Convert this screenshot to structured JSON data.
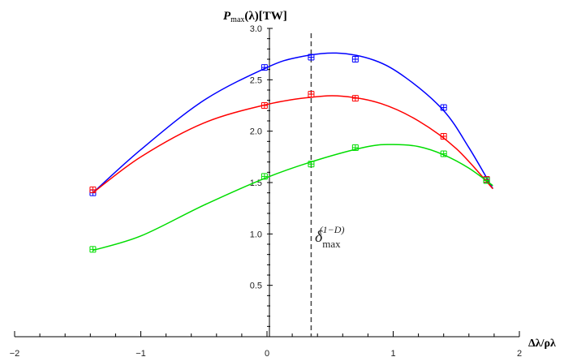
{
  "chart_data": {
    "type": "line",
    "ylabel_main": "P",
    "ylabel_sub": "max",
    "ylabel_rest": "(λ)[TW]",
    "xlabel": "Δλ/ρλ",
    "xlim": [
      -2,
      2
    ],
    "ylim": [
      0,
      3.0
    ],
    "x_ticks": [
      -2,
      -1,
      0,
      1,
      2
    ],
    "x_tick_labels": [
      "−2",
      "−1",
      "0",
      "1",
      "2"
    ],
    "y_ticks": [
      0.5,
      1.0,
      1.5,
      2.0,
      2.5,
      3.0
    ],
    "y_tick_labels": [
      "0.5",
      "1.0",
      "1.5",
      "2.0",
      "2.5",
      "3.0"
    ],
    "grid": false,
    "vline": {
      "x": 0.35,
      "label_main": "δ",
      "label_sub": "max",
      "label_sup": "(1−D)"
    },
    "series": [
      {
        "color": "#0000ff",
        "points": [
          {
            "x": -1.38,
            "y": 1.4
          },
          {
            "x": -0.02,
            "y": 2.62
          },
          {
            "x": 0.35,
            "y": 2.72
          },
          {
            "x": 0.7,
            "y": 2.7
          },
          {
            "x": 1.4,
            "y": 2.23
          },
          {
            "x": 1.74,
            "y": 1.53
          }
        ],
        "curve": [
          {
            "x": -1.38,
            "y": 1.4
          },
          {
            "x": -1.0,
            "y": 1.82
          },
          {
            "x": -0.5,
            "y": 2.3
          },
          {
            "x": 0.0,
            "y": 2.62
          },
          {
            "x": 0.25,
            "y": 2.72
          },
          {
            "x": 0.55,
            "y": 2.76
          },
          {
            "x": 0.85,
            "y": 2.69
          },
          {
            "x": 1.1,
            "y": 2.52
          },
          {
            "x": 1.4,
            "y": 2.2
          },
          {
            "x": 1.6,
            "y": 1.84
          },
          {
            "x": 1.79,
            "y": 1.44
          }
        ]
      },
      {
        "color": "#ff0000",
        "points": [
          {
            "x": -1.38,
            "y": 1.43
          },
          {
            "x": -0.02,
            "y": 2.25
          },
          {
            "x": 0.35,
            "y": 2.36
          },
          {
            "x": 0.7,
            "y": 2.32
          },
          {
            "x": 1.4,
            "y": 1.95
          },
          {
            "x": 1.74,
            "y": 1.53
          }
        ],
        "curve": [
          {
            "x": -1.38,
            "y": 1.4
          },
          {
            "x": -1.0,
            "y": 1.75
          },
          {
            "x": -0.5,
            "y": 2.08
          },
          {
            "x": 0.0,
            "y": 2.26
          },
          {
            "x": 0.35,
            "y": 2.33
          },
          {
            "x": 0.6,
            "y": 2.34
          },
          {
            "x": 0.9,
            "y": 2.27
          },
          {
            "x": 1.2,
            "y": 2.1
          },
          {
            "x": 1.5,
            "y": 1.83
          },
          {
            "x": 1.79,
            "y": 1.44
          }
        ]
      },
      {
        "color": "#00dd00",
        "points": [
          {
            "x": -1.38,
            "y": 0.85
          },
          {
            "x": -0.02,
            "y": 1.56
          },
          {
            "x": 0.35,
            "y": 1.68
          },
          {
            "x": 0.7,
            "y": 1.84
          },
          {
            "x": 1.4,
            "y": 1.78
          },
          {
            "x": 1.74,
            "y": 1.52
          }
        ],
        "curve": [
          {
            "x": -1.38,
            "y": 0.84
          },
          {
            "x": -1.0,
            "y": 0.98
          },
          {
            "x": -0.5,
            "y": 1.28
          },
          {
            "x": 0.0,
            "y": 1.55
          },
          {
            "x": 0.4,
            "y": 1.72
          },
          {
            "x": 0.8,
            "y": 1.85
          },
          {
            "x": 1.0,
            "y": 1.87
          },
          {
            "x": 1.2,
            "y": 1.85
          },
          {
            "x": 1.4,
            "y": 1.77
          },
          {
            "x": 1.6,
            "y": 1.64
          },
          {
            "x": 1.79,
            "y": 1.47
          }
        ]
      }
    ]
  }
}
